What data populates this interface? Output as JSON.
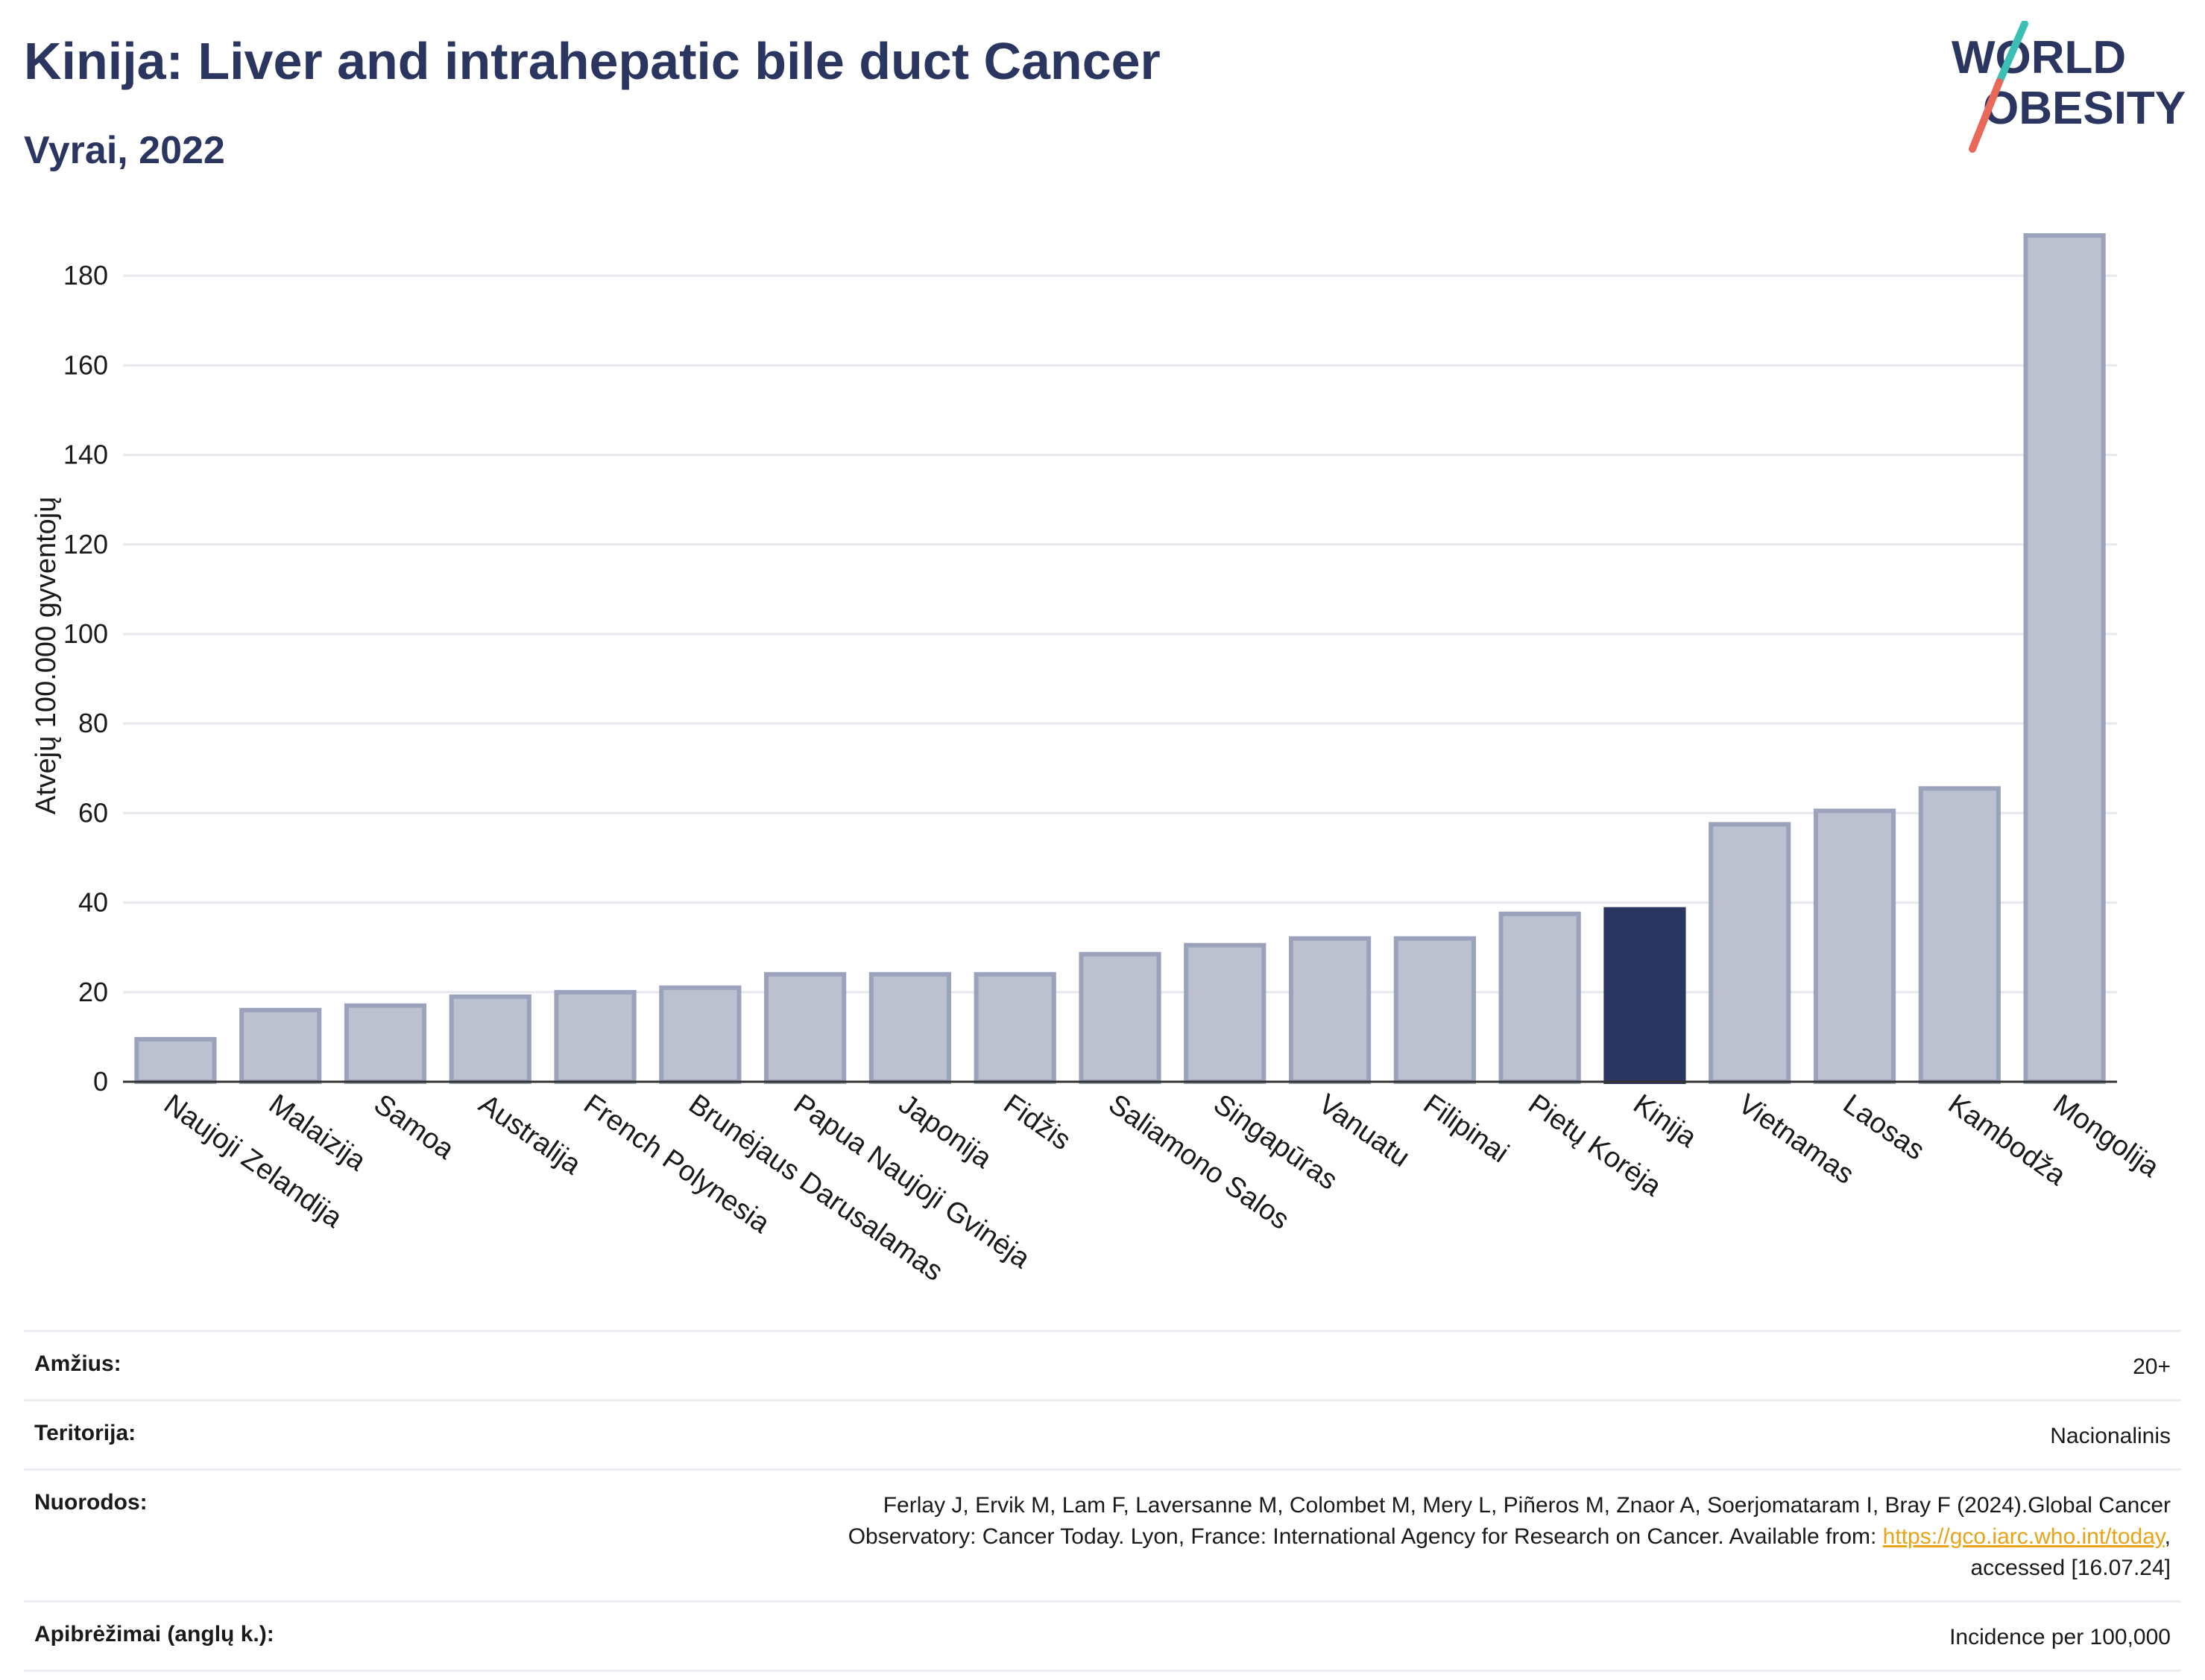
{
  "header": {
    "title": "Kinija: Liver and intrahepatic bile duct Cancer",
    "subtitle": "Vyrai, 2022"
  },
  "logo": {
    "line1": "WORLD",
    "line2": "OBESITY",
    "text_color": "#2a3560",
    "slash_top_color": "#3bbfb5",
    "slash_bottom_color": "#e8685a"
  },
  "chart_data": {
    "type": "bar",
    "title": "Kinija: Liver and intrahepatic bile duct Cancer",
    "subtitle": "Vyrai, 2022",
    "ylabel": "Atvejų 100.000 gyventojų",
    "xlabel": "",
    "ylim": [
      0,
      195
    ],
    "yticks": [
      0,
      20,
      40,
      60,
      80,
      100,
      120,
      140,
      160,
      180
    ],
    "grid": true,
    "highlight": "Kinija",
    "colors": {
      "bar_fill": "#bcc1cf",
      "bar_stroke": "#9ba2bb",
      "highlight": "#2a3560",
      "grid": "#e8e9ee"
    },
    "categories": [
      "Naujoji Zelandija",
      "Malaizija",
      "Samoa",
      "Australija",
      "French Polynesia",
      "Brunėjaus Darusalamas",
      "Papua Naujoji Gvinėja",
      "Japonija",
      "Fidžis",
      "Saliamono Salos",
      "Singapūras",
      "Vanuatu",
      "Filipinai",
      "Pietų Korėja",
      "Kinija",
      "Vietnamas",
      "Laosas",
      "Kambodža",
      "Mongolija"
    ],
    "values": [
      9.5,
      16,
      17,
      19,
      20,
      21,
      24,
      24,
      24,
      28.5,
      30.5,
      32,
      32,
      37.5,
      38.5,
      57.5,
      60.5,
      65.5,
      189
    ]
  },
  "meta": {
    "age": {
      "label": "Amžius:",
      "value": "20+"
    },
    "territory": {
      "label": "Teritorija:",
      "value": "Nacionalinis"
    },
    "references": {
      "label": "Nuorodos:",
      "line1": "Ferlay J, Ervik M, Lam F, Laversanne M, Colombet M, Mery L, Piñeros M, Znaor A, Soerjomataram I, Bray F (2024).Global Cancer",
      "line2_pre": "Observatory: Cancer Today. Lyon, France: International Agency for Research on Cancer. Available from: ",
      "link": "https://gco.iarc.who.int/today",
      "line2_post": ",",
      "line3": "accessed [16.07.24]"
    },
    "definitions": {
      "label": "Apibrėžimai (anglų k.):",
      "value": "Incidence per 100,000"
    }
  }
}
